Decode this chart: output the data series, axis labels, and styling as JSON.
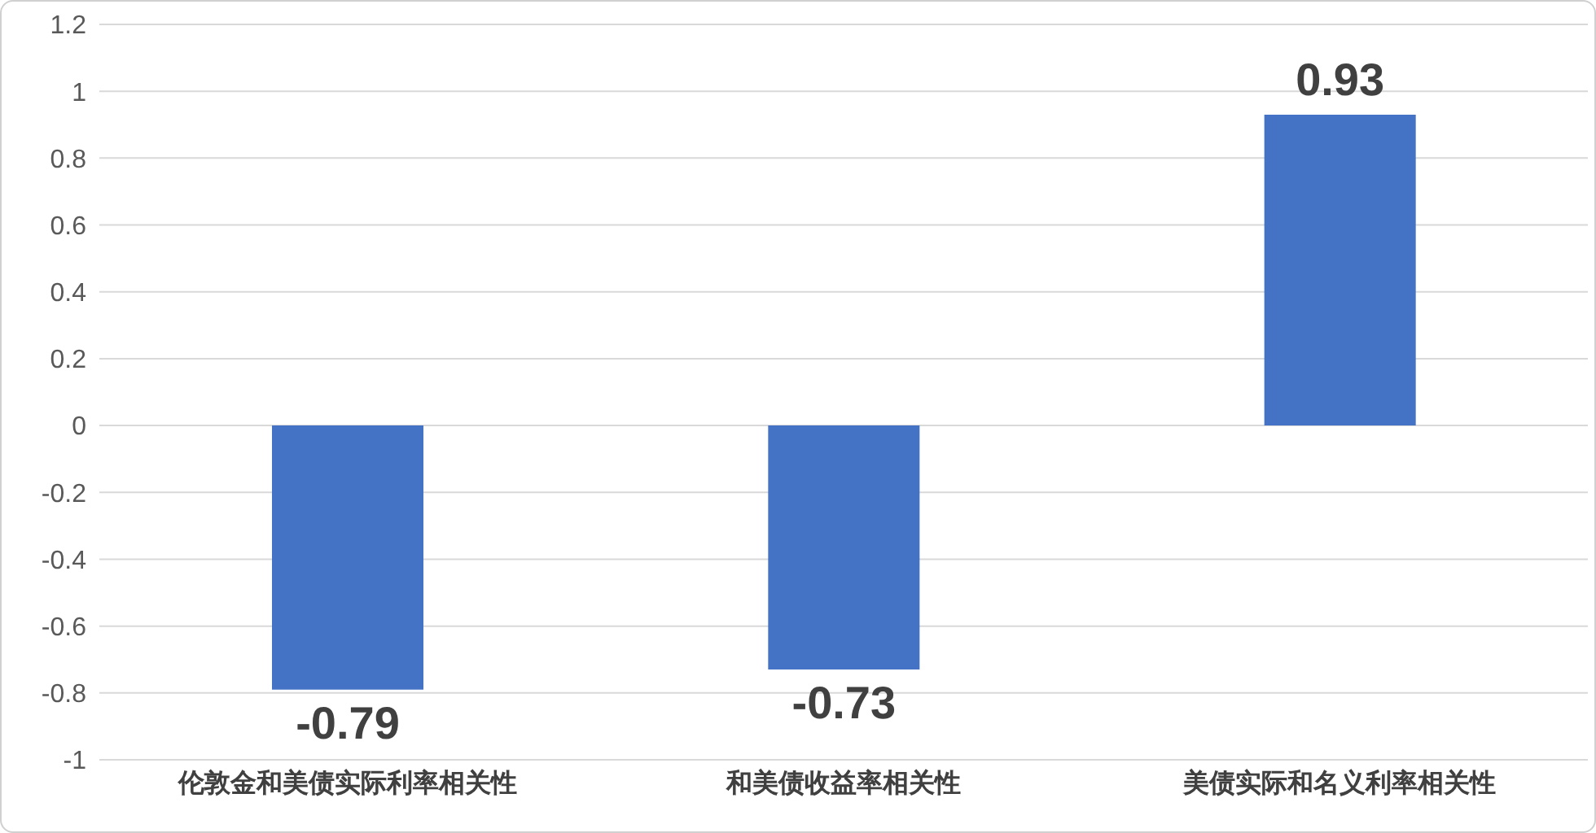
{
  "chart_data": {
    "type": "bar",
    "categories": [
      "伦敦金和美债实际利率相关性",
      "和美债收益率相关性",
      "美债实际和名义利率相关性"
    ],
    "values": [
      -0.79,
      -0.73,
      0.93
    ],
    "color": "#4472c4",
    "ylim": [
      -1,
      1.2
    ],
    "yticks": [
      -1,
      -0.8,
      -0.6,
      -0.4,
      -0.2,
      0,
      0.2,
      0.4,
      0.6,
      0.8,
      1,
      1.2
    ],
    "grid": "y",
    "data_labels": true
  }
}
